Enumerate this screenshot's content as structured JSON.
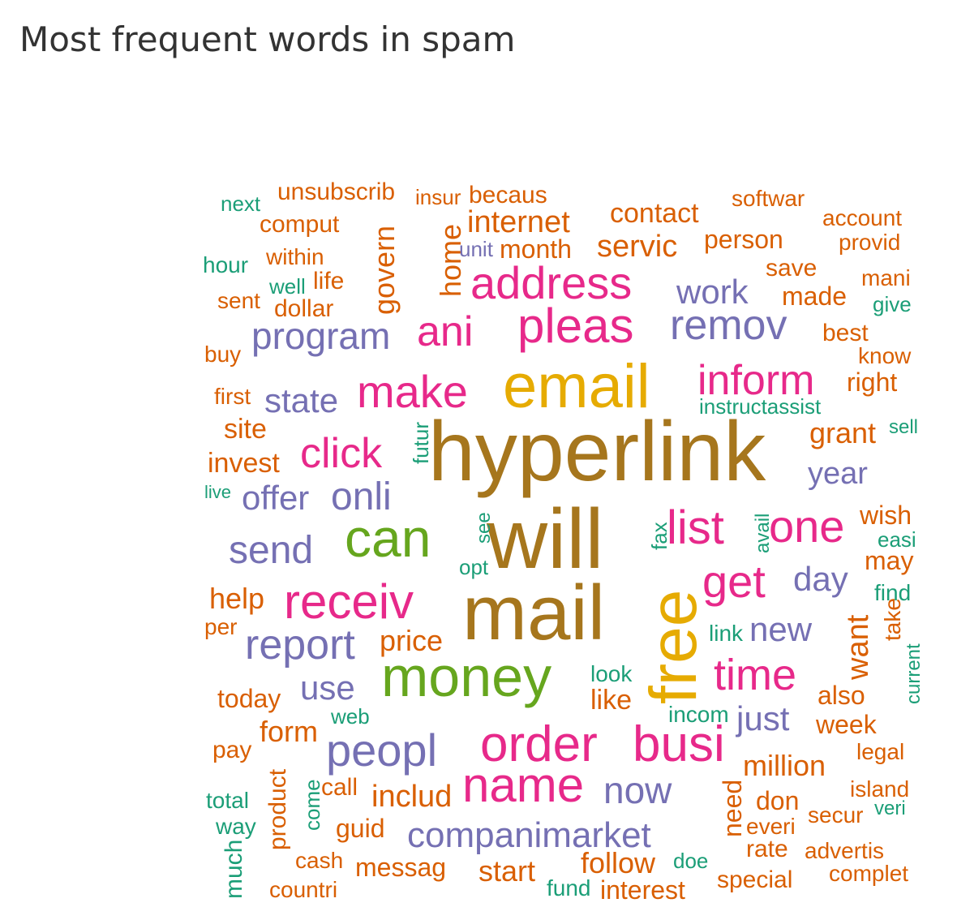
{
  "title": "Most frequent words in spam",
  "colors": {
    "teal": "#1b9e77",
    "orange": "#d95f02",
    "purple": "#7570b3",
    "magenta": "#e7298a",
    "green": "#66a61e",
    "gold": "#e6ab02",
    "brown": "#a6761d"
  },
  "words": [
    {
      "t": "hyperlink",
      "c": "brown"
    },
    {
      "t": "will",
      "c": "brown"
    },
    {
      "t": "mail",
      "c": "brown"
    },
    {
      "t": "email",
      "c": "gold"
    },
    {
      "t": "free",
      "c": "gold"
    },
    {
      "t": "money",
      "c": "green"
    },
    {
      "t": "can",
      "c": "green"
    },
    {
      "t": "order",
      "c": "magenta"
    },
    {
      "t": "busi",
      "c": "magenta"
    },
    {
      "t": "name",
      "c": "magenta"
    },
    {
      "t": "receiv",
      "c": "magenta"
    },
    {
      "t": "pleas",
      "c": "magenta"
    },
    {
      "t": "address",
      "c": "magenta"
    },
    {
      "t": "make",
      "c": "magenta"
    },
    {
      "t": "inform",
      "c": "magenta"
    },
    {
      "t": "click",
      "c": "magenta"
    },
    {
      "t": "get",
      "c": "magenta"
    },
    {
      "t": "list",
      "c": "magenta"
    },
    {
      "t": "one",
      "c": "magenta"
    },
    {
      "t": "ani",
      "c": "magenta"
    },
    {
      "t": "time",
      "c": "magenta"
    },
    {
      "t": "remov",
      "c": "purple"
    },
    {
      "t": "peopl",
      "c": "purple"
    },
    {
      "t": "report",
      "c": "purple"
    },
    {
      "t": "program",
      "c": "purple"
    },
    {
      "t": "send",
      "c": "purple"
    },
    {
      "t": "companimarket",
      "c": "purple"
    },
    {
      "t": "onli",
      "c": "purple"
    },
    {
      "t": "offer",
      "c": "purple"
    },
    {
      "t": "work",
      "c": "purple"
    },
    {
      "t": "now",
      "c": "purple"
    },
    {
      "t": "state",
      "c": "purple"
    },
    {
      "t": "day",
      "c": "purple"
    },
    {
      "t": "new",
      "c": "purple"
    },
    {
      "t": "use",
      "c": "purple"
    },
    {
      "t": "just",
      "c": "purple"
    },
    {
      "t": "year",
      "c": "purple"
    },
    {
      "t": "internet",
      "c": "orange"
    },
    {
      "t": "servic",
      "c": "orange"
    },
    {
      "t": "contact",
      "c": "orange"
    },
    {
      "t": "person",
      "c": "orange"
    },
    {
      "t": "month",
      "c": "orange"
    },
    {
      "t": "price",
      "c": "orange"
    },
    {
      "t": "includ",
      "c": "orange"
    },
    {
      "t": "form",
      "c": "orange"
    },
    {
      "t": "help",
      "c": "orange"
    },
    {
      "t": "invest",
      "c": "orange"
    },
    {
      "t": "site",
      "c": "orange"
    },
    {
      "t": "today",
      "c": "orange"
    },
    {
      "t": "grant",
      "c": "orange"
    },
    {
      "t": "million",
      "c": "orange"
    },
    {
      "t": "also",
      "c": "orange"
    },
    {
      "t": "week",
      "c": "orange"
    },
    {
      "t": "start",
      "c": "orange"
    },
    {
      "t": "follow",
      "c": "orange"
    },
    {
      "t": "messag",
      "c": "orange"
    },
    {
      "t": "interest",
      "c": "orange"
    },
    {
      "t": "special",
      "c": "orange"
    },
    {
      "t": "don",
      "c": "orange"
    },
    {
      "t": "rate",
      "c": "orange"
    },
    {
      "t": "made",
      "c": "orange"
    },
    {
      "t": "save",
      "c": "orange"
    },
    {
      "t": "dollar",
      "c": "orange"
    },
    {
      "t": "life",
      "c": "orange"
    },
    {
      "t": "within",
      "c": "orange"
    },
    {
      "t": "comput",
      "c": "orange"
    },
    {
      "t": "unsubscrib",
      "c": "orange"
    },
    {
      "t": "becaus",
      "c": "orange"
    },
    {
      "t": "softwar",
      "c": "orange"
    },
    {
      "t": "account",
      "c": "orange"
    },
    {
      "t": "provid",
      "c": "orange"
    },
    {
      "t": "best",
      "c": "orange"
    },
    {
      "t": "right",
      "c": "orange"
    },
    {
      "t": "wish",
      "c": "orange"
    },
    {
      "t": "may",
      "c": "orange"
    },
    {
      "t": "guid",
      "c": "orange"
    },
    {
      "t": "call",
      "c": "orange"
    },
    {
      "t": "cash",
      "c": "orange"
    },
    {
      "t": "countri",
      "c": "orange"
    },
    {
      "t": "pay",
      "c": "orange"
    },
    {
      "t": "per",
      "c": "orange"
    },
    {
      "t": "buy",
      "c": "orange"
    },
    {
      "t": "sent",
      "c": "orange"
    },
    {
      "t": "first",
      "c": "orange"
    },
    {
      "t": "legal",
      "c": "orange"
    },
    {
      "t": "island",
      "c": "orange"
    },
    {
      "t": "secur",
      "c": "orange"
    },
    {
      "t": "advertis",
      "c": "orange"
    },
    {
      "t": "complet",
      "c": "orange"
    },
    {
      "t": "know",
      "c": "orange"
    },
    {
      "t": "mani",
      "c": "orange"
    },
    {
      "t": "insur",
      "c": "orange"
    },
    {
      "t": "govern",
      "c": "orange"
    },
    {
      "t": "home",
      "c": "orange"
    },
    {
      "t": "product",
      "c": "orange"
    },
    {
      "t": "want",
      "c": "orange"
    },
    {
      "t": "take",
      "c": "orange"
    },
    {
      "t": "need",
      "c": "orange"
    },
    {
      "t": "like",
      "c": "orange"
    },
    {
      "t": "everi",
      "c": "orange"
    },
    {
      "t": "unit",
      "c": "purple"
    },
    {
      "t": "next",
      "c": "teal"
    },
    {
      "t": "hour",
      "c": "teal"
    },
    {
      "t": "well",
      "c": "teal"
    },
    {
      "t": "live",
      "c": "teal"
    },
    {
      "t": "give",
      "c": "teal"
    },
    {
      "t": "instructassist",
      "c": "teal"
    },
    {
      "t": "sell",
      "c": "teal"
    },
    {
      "t": "easi",
      "c": "teal"
    },
    {
      "t": "find",
      "c": "teal"
    },
    {
      "t": "link",
      "c": "teal"
    },
    {
      "t": "look",
      "c": "teal"
    },
    {
      "t": "incom",
      "c": "teal"
    },
    {
      "t": "web",
      "c": "teal"
    },
    {
      "t": "opt",
      "c": "teal"
    },
    {
      "t": "total",
      "c": "teal"
    },
    {
      "t": "way",
      "c": "teal"
    },
    {
      "t": "fund",
      "c": "teal"
    },
    {
      "t": "doe",
      "c": "teal"
    },
    {
      "t": "veri",
      "c": "teal"
    },
    {
      "t": "futur",
      "c": "teal"
    },
    {
      "t": "see",
      "c": "teal"
    },
    {
      "t": "fax",
      "c": "teal"
    },
    {
      "t": "avail",
      "c": "teal"
    },
    {
      "t": "current",
      "c": "teal"
    },
    {
      "t": "come",
      "c": "teal"
    },
    {
      "t": "much",
      "c": "teal"
    }
  ]
}
